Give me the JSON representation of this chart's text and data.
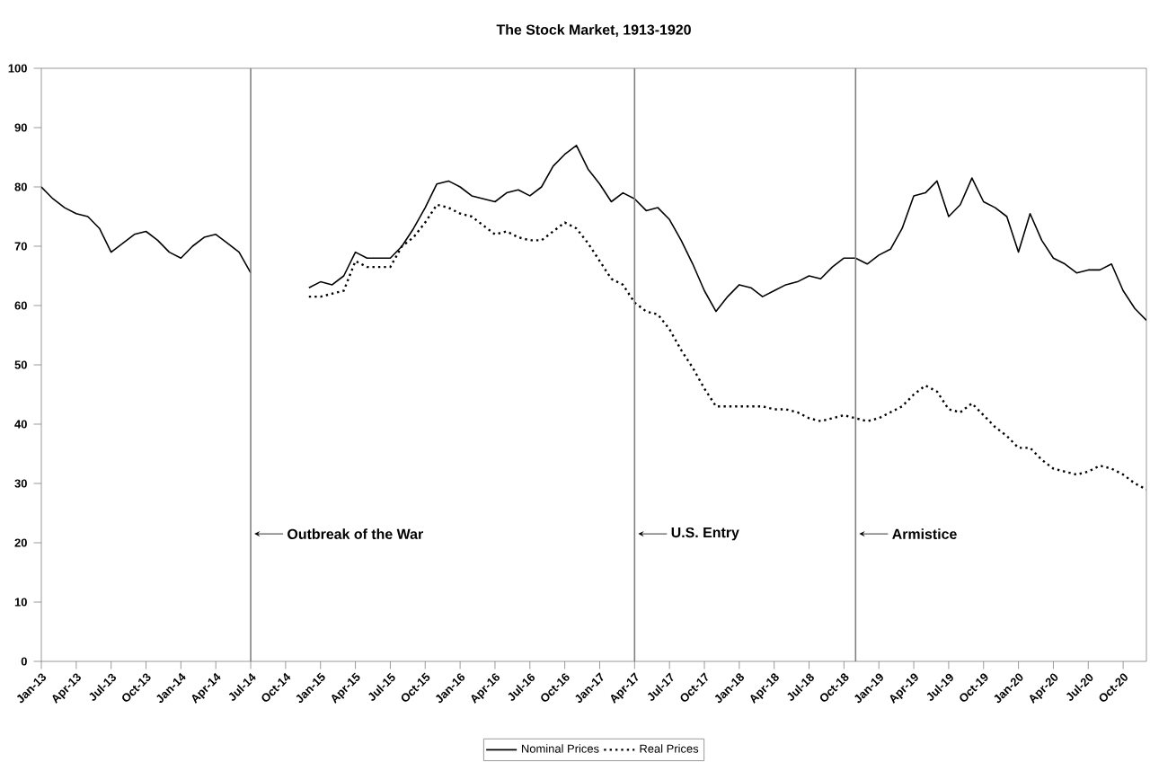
{
  "chart_data": {
    "type": "line",
    "title": "The Stock Market, 1913-1920",
    "x": [
      "1913-01",
      "1913-02",
      "1913-03",
      "1913-04",
      "1913-05",
      "1913-06",
      "1913-07",
      "1913-08",
      "1913-09",
      "1913-10",
      "1913-11",
      "1913-12",
      "1914-01",
      "1914-02",
      "1914-03",
      "1914-04",
      "1914-05",
      "1914-06",
      "1914-07",
      "1914-08",
      "1914-09",
      "1914-10",
      "1914-11",
      "1914-12",
      "1915-01",
      "1915-02",
      "1915-03",
      "1915-04",
      "1915-05",
      "1915-06",
      "1915-07",
      "1915-08",
      "1915-09",
      "1915-10",
      "1915-11",
      "1915-12",
      "1916-01",
      "1916-02",
      "1916-03",
      "1916-04",
      "1916-05",
      "1916-06",
      "1916-07",
      "1916-08",
      "1916-09",
      "1916-10",
      "1916-11",
      "1916-12",
      "1917-01",
      "1917-02",
      "1917-03",
      "1917-04",
      "1917-05",
      "1917-06",
      "1917-07",
      "1917-08",
      "1917-09",
      "1917-10",
      "1917-11",
      "1917-12",
      "1918-01",
      "1918-02",
      "1918-03",
      "1918-04",
      "1918-05",
      "1918-06",
      "1918-07",
      "1918-08",
      "1918-09",
      "1918-10",
      "1918-11",
      "1918-12",
      "1919-01",
      "1919-02",
      "1919-03",
      "1919-04",
      "1919-05",
      "1919-06",
      "1919-07",
      "1919-08",
      "1919-09",
      "1919-10",
      "1919-11",
      "1919-12",
      "1920-01",
      "1920-02",
      "1920-03",
      "1920-04",
      "1920-05",
      "1920-06",
      "1920-07",
      "1920-08",
      "1920-09",
      "1920-10",
      "1920-11",
      "1920-12"
    ],
    "series": [
      {
        "name": "Nominal Prices",
        "color": "#000000",
        "line_style": "solid",
        "values": [
          80,
          78,
          76.5,
          75.5,
          75,
          73,
          69,
          70.5,
          72,
          72.5,
          71,
          69,
          68,
          70,
          71.5,
          72,
          70.5,
          69,
          65.5,
          null,
          null,
          null,
          null,
          63,
          64,
          63.5,
          65,
          69,
          68,
          68,
          68,
          70,
          73,
          76.5,
          80.5,
          81,
          80,
          78.5,
          78,
          77.5,
          79,
          79.5,
          78.5,
          80,
          83.5,
          85.5,
          87,
          83,
          80.5,
          77.5,
          79,
          78,
          76,
          76.5,
          74.5,
          71,
          67,
          62.5,
          59,
          61.5,
          63.5,
          63,
          61.5,
          62.5,
          63.5,
          64,
          65,
          64.5,
          66.5,
          68,
          68,
          67,
          68.5,
          69.5,
          73,
          78.5,
          79,
          81,
          75,
          77,
          81.5,
          77.5,
          76.5,
          75,
          69,
          75.5,
          71,
          68,
          67,
          65.5,
          66,
          66,
          67,
          62.5,
          59.5,
          57.5
        ]
      },
      {
        "name": "Real Prices",
        "color": "#000000",
        "line_style": "dotted",
        "values": [
          null,
          null,
          null,
          null,
          null,
          null,
          null,
          null,
          null,
          null,
          null,
          null,
          null,
          null,
          null,
          null,
          null,
          null,
          null,
          null,
          null,
          null,
          null,
          61.5,
          61.5,
          62,
          62.5,
          67.5,
          66.5,
          66.5,
          66.5,
          70,
          71.5,
          74,
          77,
          76.5,
          75.5,
          75,
          73.5,
          72,
          72.5,
          71.5,
          71,
          71,
          72.5,
          74,
          73,
          70.5,
          67.5,
          64.5,
          63.5,
          60.5,
          59,
          58.5,
          56,
          52.5,
          49.5,
          46,
          43,
          43,
          43,
          43,
          43,
          42.5,
          42.5,
          42,
          41,
          40.5,
          41,
          41.5,
          41,
          40.5,
          41,
          42,
          43,
          45,
          46.5,
          45.5,
          42.5,
          42,
          43.5,
          41.5,
          39.5,
          38,
          36,
          36,
          34,
          32.5,
          32,
          31.5,
          32,
          33,
          32.5,
          31.5,
          30,
          29
        ]
      }
    ],
    "xlim": [
      "1913-01",
      "1920-12"
    ],
    "xticks": [
      {
        "value": "1913-01",
        "label": "Jan-13"
      },
      {
        "value": "1913-04",
        "label": "Apr-13"
      },
      {
        "value": "1913-07",
        "label": "Jul-13"
      },
      {
        "value": "1913-10",
        "label": "Oct-13"
      },
      {
        "value": "1914-01",
        "label": "Jan-14"
      },
      {
        "value": "1914-04",
        "label": "Apr-14"
      },
      {
        "value": "1914-07",
        "label": "Jul-14"
      },
      {
        "value": "1914-10",
        "label": "Oct-14"
      },
      {
        "value": "1915-01",
        "label": "Jan-15"
      },
      {
        "value": "1915-04",
        "label": "Apr-15"
      },
      {
        "value": "1915-07",
        "label": "Jul-15"
      },
      {
        "value": "1915-10",
        "label": "Oct-15"
      },
      {
        "value": "1916-01",
        "label": "Jan-16"
      },
      {
        "value": "1916-04",
        "label": "Apr-16"
      },
      {
        "value": "1916-07",
        "label": "Jul-16"
      },
      {
        "value": "1916-10",
        "label": "Oct-16"
      },
      {
        "value": "1917-01",
        "label": "Jan-17"
      },
      {
        "value": "1917-04",
        "label": "Apr-17"
      },
      {
        "value": "1917-07",
        "label": "Jul-17"
      },
      {
        "value": "1917-10",
        "label": "Oct-17"
      },
      {
        "value": "1918-01",
        "label": "Jan-18"
      },
      {
        "value": "1918-04",
        "label": "Apr-18"
      },
      {
        "value": "1918-07",
        "label": "Jul-18"
      },
      {
        "value": "1918-10",
        "label": "Oct-18"
      },
      {
        "value": "1919-01",
        "label": "Jan-19"
      },
      {
        "value": "1919-04",
        "label": "Apr-19"
      },
      {
        "value": "1919-07",
        "label": "Jul-19"
      },
      {
        "value": "1919-10",
        "label": "Oct-19"
      },
      {
        "value": "1920-01",
        "label": "Jan-20"
      },
      {
        "value": "1920-04",
        "label": "Apr-20"
      },
      {
        "value": "1920-07",
        "label": "Jul-20"
      },
      {
        "value": "1920-10",
        "label": "Oct-20"
      }
    ],
    "ylim": [
      0,
      100
    ],
    "yticks": [
      0,
      10,
      20,
      30,
      40,
      50,
      60,
      70,
      80,
      90,
      100
    ],
    "ref_lines": [
      {
        "axis": "x",
        "value": "1914-07",
        "label": "Outbreak of the War",
        "color": "#808080"
      },
      {
        "axis": "x",
        "value": "1917-04",
        "label": "U.S. Entry",
        "color": "#808080"
      },
      {
        "axis": "x",
        "value": "1918-11",
        "label": "Armistice",
        "color": "#808080"
      }
    ],
    "grid": false,
    "legend": "bottom",
    "marker": "none"
  }
}
